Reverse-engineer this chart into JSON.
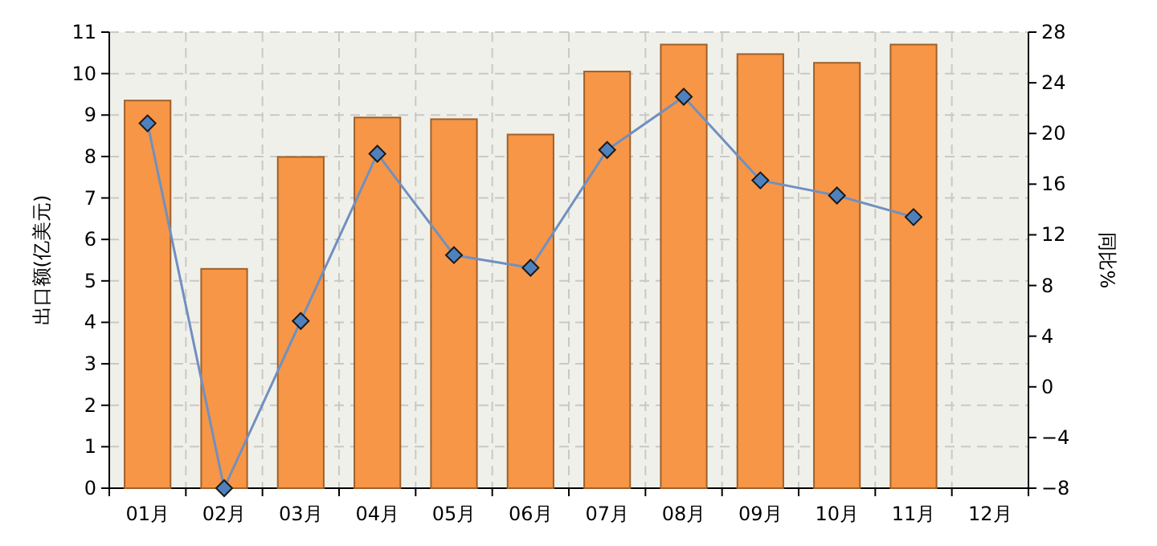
{
  "chart_data": {
    "type": "bar",
    "categories": [
      "01月",
      "02月",
      "03月",
      "04月",
      "05月",
      "06月",
      "07月",
      "08月",
      "09月",
      "10月",
      "11月",
      "12月"
    ],
    "ylabel": "出口额(亿美元)",
    "y2label": "同比%",
    "ylim": [
      0,
      11
    ],
    "yticks": [
      0,
      1,
      2,
      3,
      4,
      5,
      6,
      7,
      8,
      9,
      10,
      11
    ],
    "y2lim": [
      -8,
      28
    ],
    "y2ticks": [
      -8,
      -4,
      0,
      4,
      8,
      12,
      16,
      20,
      24,
      28
    ],
    "grid": true,
    "marker": "diamond",
    "line_style": "solid",
    "series": [
      {
        "color": "#f79646",
        "values": [
          9.35,
          5.29,
          7.99,
          8.94,
          8.9,
          8.53,
          10.05,
          10.7,
          10.47,
          10.26,
          10.7,
          null
        ]
      },
      {
        "type": "line",
        "axis": "y2",
        "color": "#7090c0",
        "values": [
          20.8,
          -8.0,
          5.2,
          18.4,
          10.4,
          9.4,
          18.7,
          22.9,
          16.3,
          15.1,
          13.4,
          null
        ]
      }
    ]
  }
}
